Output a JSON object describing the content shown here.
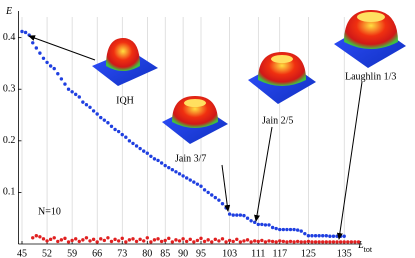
{
  "chart_data": {
    "type": "scatter",
    "y_label": "E",
    "x_label": "L",
    "x_label_sub": "tot",
    "annotations": [
      "IQH",
      "Jain 3/7",
      "Jain 2/5",
      "Laughlin 1/3",
      "N=10"
    ],
    "xlim": [
      44,
      140
    ],
    "ylim": [
      0,
      0.44
    ],
    "xticks": [
      45,
      52,
      59,
      66,
      73,
      80,
      85,
      90,
      95,
      103,
      111,
      117,
      125,
      135
    ],
    "yticks": [
      0.1,
      0.2,
      0.3,
      0.4
    ],
    "grid": true,
    "series": [
      {
        "color": "#1f3fe0",
        "x": [
          45,
          46,
          47,
          48,
          49,
          50,
          51,
          52,
          53,
          54,
          55,
          56,
          57,
          58,
          59,
          60,
          61,
          62,
          63,
          64,
          65,
          66,
          67,
          68,
          69,
          70,
          71,
          72,
          73,
          74,
          75,
          76,
          77,
          78,
          79,
          80,
          81,
          82,
          83,
          84,
          85,
          86,
          87,
          88,
          89,
          90,
          91,
          92,
          93,
          94,
          95,
          96,
          97,
          98,
          99,
          100,
          101,
          102,
          103,
          104,
          105,
          106,
          107,
          108,
          109,
          110,
          111,
          112,
          113,
          114,
          115,
          116,
          117,
          118,
          119,
          120,
          121,
          122,
          123,
          124,
          125,
          126,
          127,
          128,
          129,
          130,
          131,
          132,
          133,
          134,
          135
        ],
        "values": [
          0.412,
          0.41,
          0.405,
          0.39,
          0.38,
          0.37,
          0.36,
          0.352,
          0.345,
          0.34,
          0.33,
          0.32,
          0.31,
          0.3,
          0.295,
          0.29,
          0.285,
          0.275,
          0.27,
          0.265,
          0.258,
          0.252,
          0.245,
          0.24,
          0.235,
          0.228,
          0.222,
          0.218,
          0.212,
          0.207,
          0.2,
          0.195,
          0.19,
          0.185,
          0.18,
          0.176,
          0.17,
          0.165,
          0.162,
          0.157,
          0.152,
          0.148,
          0.144,
          0.14,
          0.136,
          0.132,
          0.128,
          0.124,
          0.12,
          0.116,
          0.112,
          0.105,
          0.1,
          0.095,
          0.09,
          0.085,
          0.078,
          0.07,
          0.058,
          0.056,
          0.056,
          0.056,
          0.055,
          0.05,
          0.045,
          0.042,
          0.038,
          0.038,
          0.037,
          0.037,
          0.032,
          0.03,
          0.028,
          0.028,
          0.028,
          0.028,
          0.028,
          0.027,
          0.025,
          0.02,
          0.016,
          0.016,
          0.016,
          0.016,
          0.016,
          0.016,
          0.015,
          0.015,
          0.015,
          0.015,
          0.015
        ]
      },
      {
        "color": "#e02020",
        "x": [
          48,
          49,
          50,
          51,
          52,
          53,
          54,
          55,
          56,
          57,
          58,
          59,
          60,
          61,
          62,
          63,
          64,
          65,
          66,
          67,
          68,
          69,
          70,
          71,
          72,
          73,
          74,
          75,
          76,
          77,
          78,
          79,
          80,
          81,
          82,
          83,
          84,
          85,
          86,
          87,
          88,
          89,
          90,
          91,
          92,
          93,
          94,
          95,
          96,
          97,
          98,
          99,
          100,
          101,
          102,
          103,
          104,
          105,
          106,
          107,
          108,
          109,
          110,
          111,
          112,
          113,
          114,
          115,
          116,
          117,
          118,
          119,
          120,
          121,
          122,
          123,
          124,
          125,
          126,
          127,
          128,
          129,
          130,
          131,
          132,
          133,
          134,
          135,
          136,
          137,
          138,
          139
        ],
        "values": [
          0.012,
          0.016,
          0.014,
          0.01,
          0.006,
          0.009,
          0.012,
          0.005,
          0.008,
          0.011,
          0.004,
          0.007,
          0.01,
          0.005,
          0.008,
          0.012,
          0.006,
          0.009,
          0.004,
          0.01,
          0.007,
          0.012,
          0.005,
          0.009,
          0.006,
          0.011,
          0.004,
          0.008,
          0.01,
          0.005,
          0.009,
          0.006,
          0.012,
          0.004,
          0.008,
          0.01,
          0.005,
          0.007,
          0.011,
          0.004,
          0.008,
          0.006,
          0.01,
          0.005,
          0.009,
          0.004,
          0.007,
          0.011,
          0.005,
          0.008,
          0.004,
          0.009,
          0.006,
          0.01,
          0.004,
          0.007,
          0.005,
          0.009,
          0.004,
          0.006,
          0.008,
          0.004,
          0.006,
          0.005,
          0.007,
          0.004,
          0.006,
          0.005,
          0.004,
          0.006,
          0.005,
          0.004,
          0.005,
          0.004,
          0.005,
          0.004,
          0.004,
          0.005,
          0.004,
          0.004,
          0.004,
          0.004,
          0.004,
          0.004,
          0.004,
          0.004,
          0.004,
          0.004,
          0.004,
          0.004,
          0.004,
          0.004
        ]
      }
    ]
  }
}
